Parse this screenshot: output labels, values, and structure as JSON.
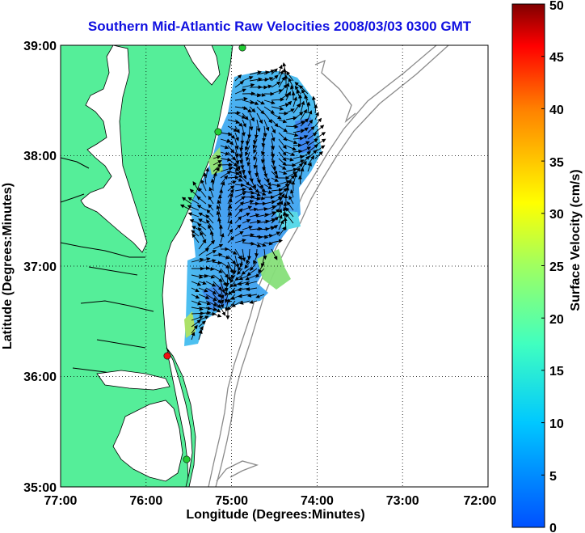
{
  "chart_data": {
    "type": "heatmap",
    "title": "Southern Mid-Atlantic Raw Velocities 2008/03/03 0300 GMT",
    "xlabel": "Longitude (Degrees:Minutes)",
    "ylabel": "Latitude (Degrees:Minutes)",
    "x_ticks": [
      "77:00",
      "76:00",
      "75:00",
      "74:00",
      "73:00",
      "72:00"
    ],
    "y_ticks": [
      "39:00",
      "38:00",
      "37:00",
      "36:00",
      "35:00"
    ],
    "xlim": [
      -77,
      -72
    ],
    "ylim": [
      35,
      39
    ],
    "grid": "dotted",
    "colorbar": {
      "label": "Surface Velocity (cm/s)",
      "range": [
        0,
        50
      ],
      "ticks": [
        "0",
        "5",
        "10",
        "15",
        "20",
        "25",
        "30",
        "35",
        "40",
        "45",
        "50"
      ]
    },
    "stations": [
      {
        "lon": -75.12,
        "lat": 38.98,
        "color": "#22cc33"
      },
      {
        "lon": -75.1,
        "lat": 38.2,
        "color": "#22cc33"
      },
      {
        "lon": -75.75,
        "lat": 36.18,
        "color": "#ee1111"
      },
      {
        "lon": -75.53,
        "lat": 35.25,
        "color": "#22cc33"
      }
    ]
  },
  "colors": {
    "land": "#55ee99",
    "title": "#1010e0",
    "bathymetry": "#8a8a8a"
  }
}
